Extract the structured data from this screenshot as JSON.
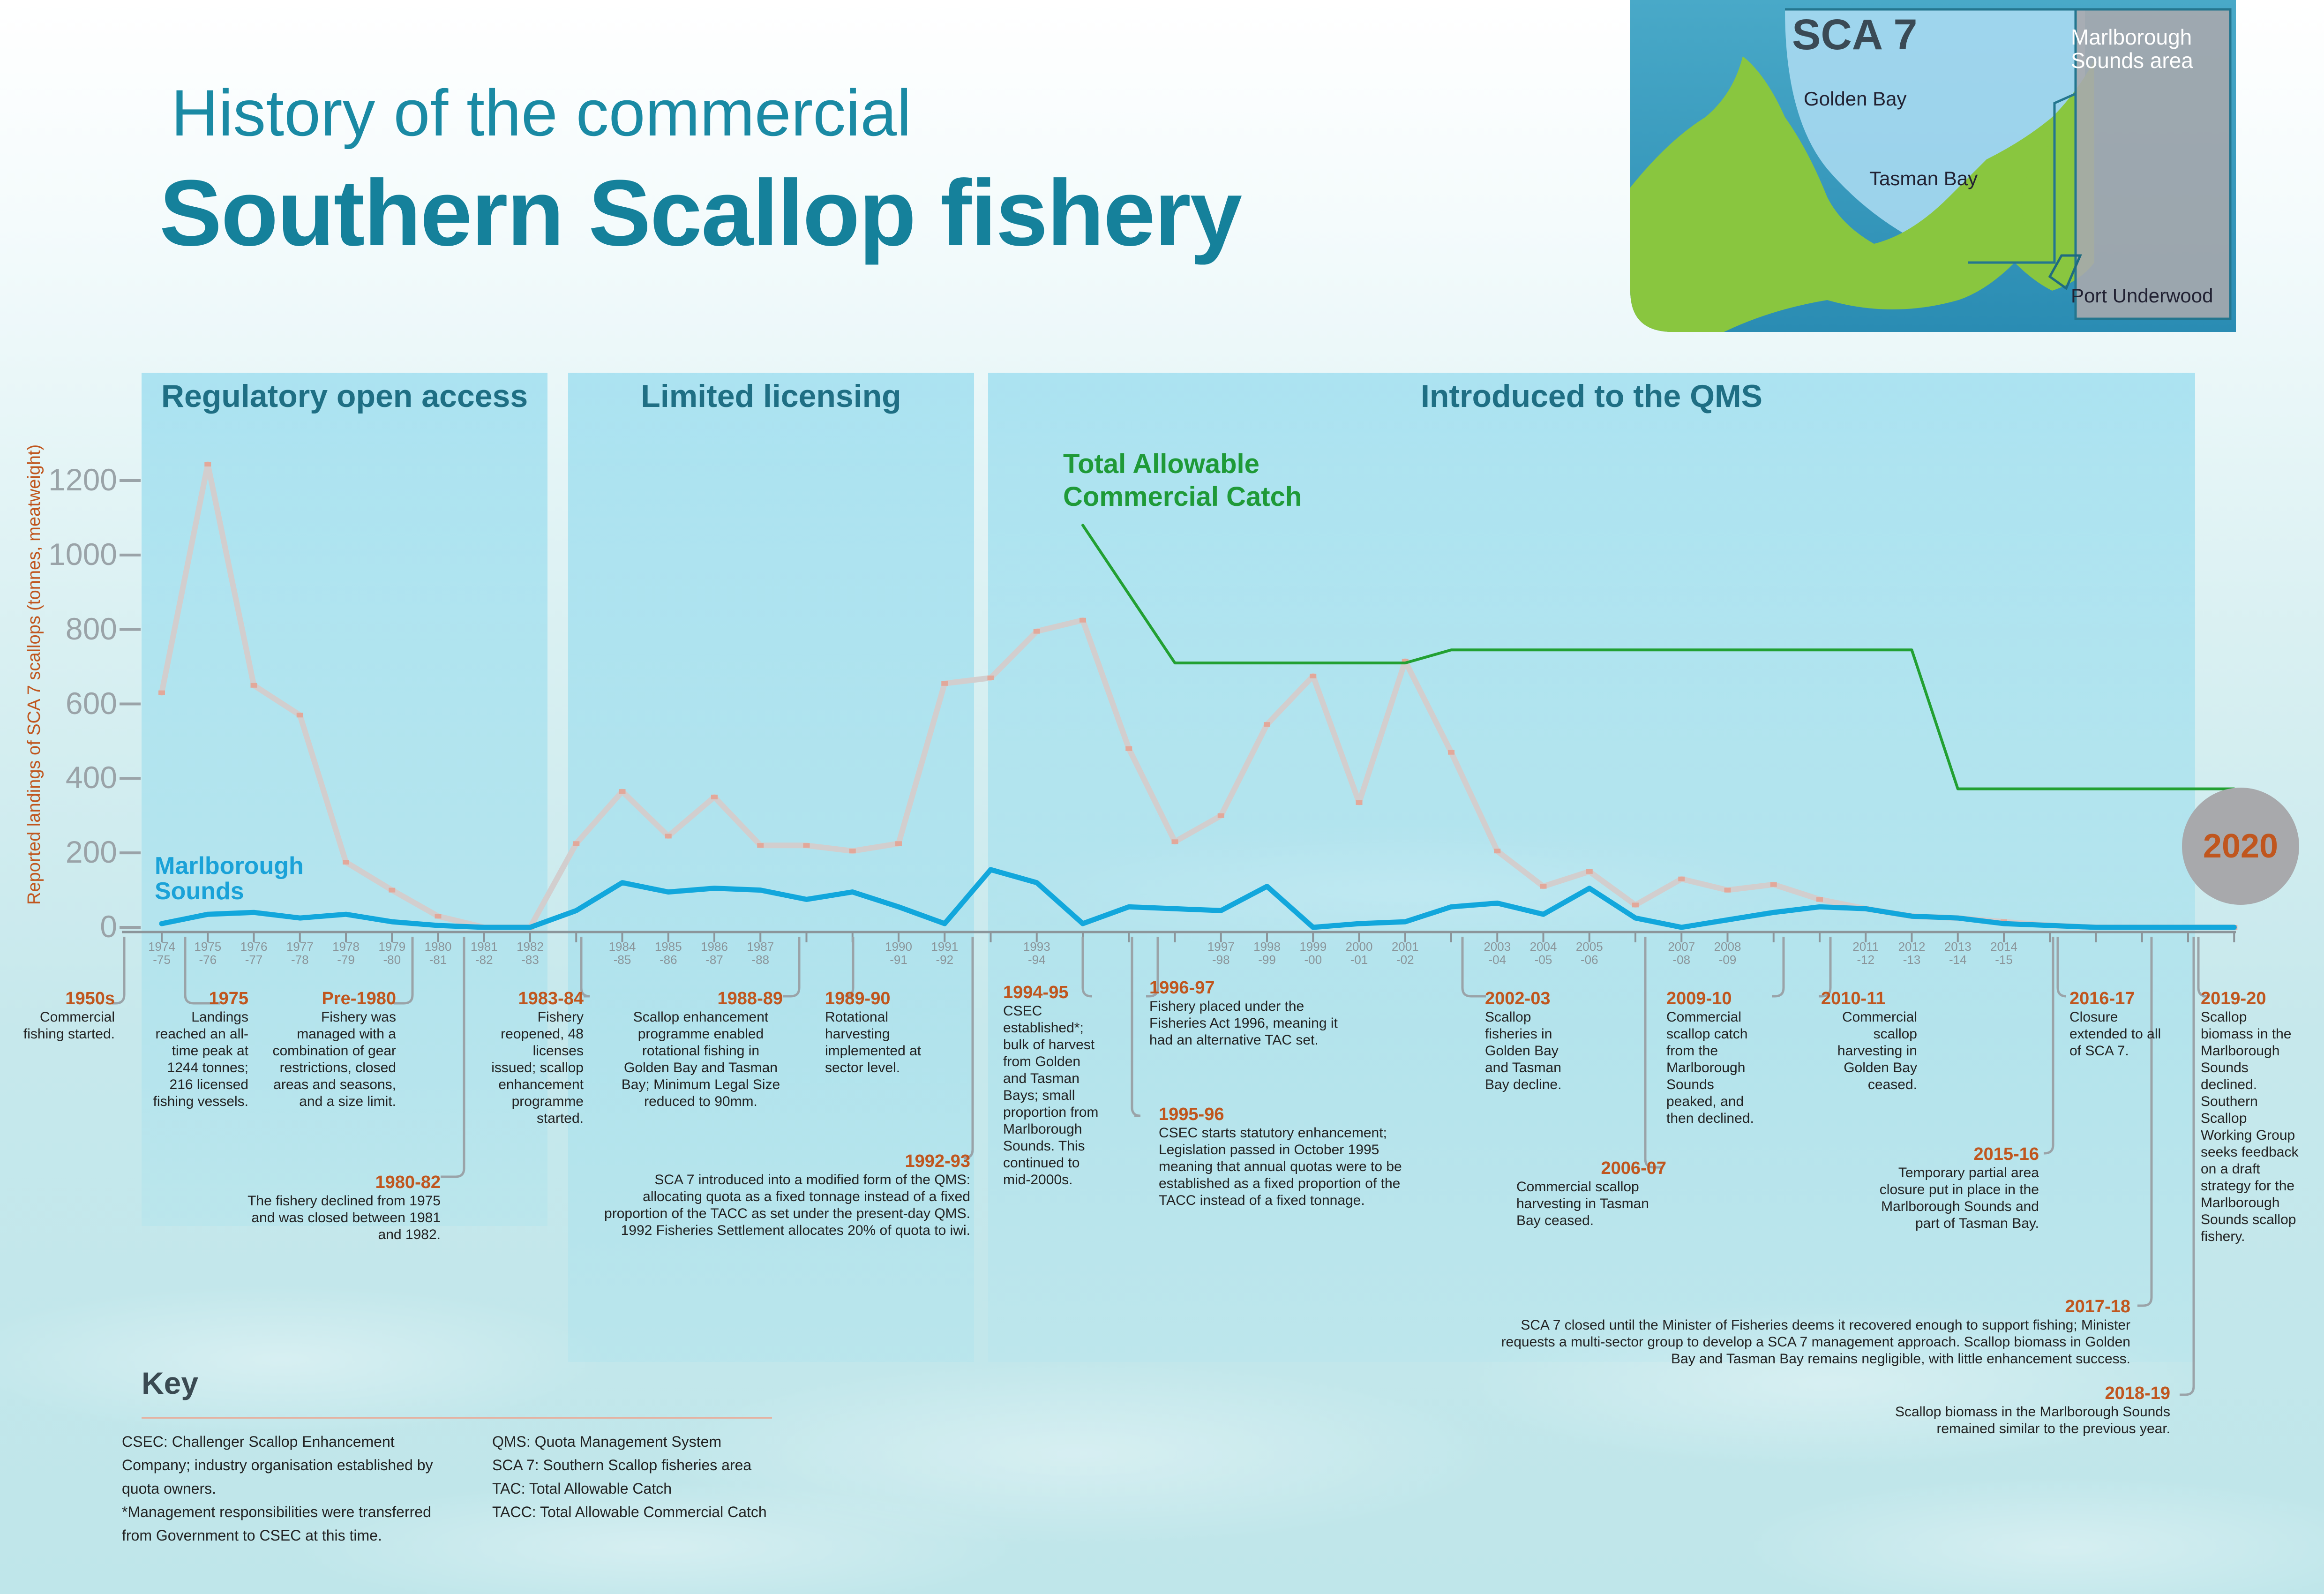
{
  "title": {
    "line1": "History of the commercial",
    "line2": "Southern Scallop fishery"
  },
  "map": {
    "area_label": "SCA 7",
    "marlborough_label_1": "Marlborough",
    "marlborough_label_2": "Sounds area",
    "golden_bay": "Golden Bay",
    "tasman_bay": "Tasman Bay",
    "port_underwood": "Port Underwood"
  },
  "phases": [
    "Regulatory open access",
    "Limited licensing",
    "Introduced to the QMS"
  ],
  "badge": "2020",
  "chart_data": {
    "type": "line",
    "ylabel": "Reported landings of SCA 7 scallops (tonnes, meatweight)",
    "ylim": [
      0,
      1300
    ],
    "yticks": [
      0,
      200,
      400,
      600,
      800,
      1000,
      1200
    ],
    "x_labels": [
      [
        "1974",
        "-75"
      ],
      [
        "1975",
        "-76"
      ],
      [
        "1976",
        "-77"
      ],
      [
        "1977",
        "-78"
      ],
      [
        "1978",
        "-79"
      ],
      [
        "1979",
        "-80"
      ],
      [
        "1980",
        "-81"
      ],
      [
        "1981",
        "-82"
      ],
      [
        "1982",
        "-83"
      ],
      [
        "1984",
        "-85"
      ],
      [
        "1985",
        "-86"
      ],
      [
        "1986",
        "-87"
      ],
      [
        "1987",
        "-88"
      ],
      [
        "1990",
        "-91"
      ],
      [
        "1991",
        "-92"
      ],
      [
        "1993",
        "-94"
      ],
      [
        "1997",
        "-98"
      ],
      [
        "1998",
        "-99"
      ],
      [
        "1999",
        "-00"
      ],
      [
        "2000",
        "-01"
      ],
      [
        "2001",
        "-02"
      ],
      [
        "2003",
        "-04"
      ],
      [
        "2004",
        "-05"
      ],
      [
        "2005",
        "-06"
      ],
      [
        "2007",
        "-08"
      ],
      [
        "2008",
        "-09"
      ],
      [
        "2011",
        "-12"
      ],
      [
        "2012",
        "-13"
      ],
      [
        "2013",
        "-14"
      ],
      [
        "2014",
        "-15"
      ]
    ],
    "series": [
      {
        "name": "",
        "color": "#d2cece",
        "x": [
          1974,
          1975,
          1976,
          1977,
          1978,
          1979,
          1980,
          1981,
          1982,
          1983,
          1984,
          1985,
          1986,
          1987,
          1988,
          1989,
          1990,
          1991,
          1992,
          1993,
          1994,
          1995,
          1996,
          1997,
          1998,
          1999,
          2000,
          2001,
          2002,
          2003,
          2004,
          2005,
          2006,
          2007,
          2008,
          2009,
          2010,
          2011,
          2012,
          2013,
          2014,
          2015,
          2016,
          2017,
          2018,
          2019
        ],
        "values": [
          630,
          1244,
          650,
          570,
          175,
          100,
          30,
          0,
          0,
          225,
          365,
          245,
          350,
          220,
          220,
          205,
          225,
          655,
          670,
          795,
          825,
          480,
          230,
          300,
          545,
          675,
          335,
          715,
          470,
          205,
          110,
          150,
          60,
          130,
          100,
          115,
          75,
          50,
          30,
          25,
          15,
          5,
          0,
          0,
          0,
          0
        ]
      },
      {
        "name": "Marlborough Sounds",
        "color": "#12a7dc",
        "x": [
          1974,
          1975,
          1976,
          1977,
          1978,
          1979,
          1980,
          1981,
          1982,
          1983,
          1984,
          1985,
          1986,
          1987,
          1988,
          1989,
          1990,
          1991,
          1992,
          1993,
          1994,
          1995,
          1996,
          1997,
          1998,
          1999,
          2000,
          2001,
          2002,
          2003,
          2004,
          2005,
          2006,
          2007,
          2008,
          2009,
          2010,
          2011,
          2012,
          2013,
          2014,
          2015,
          2016,
          2017,
          2018,
          2019
        ],
        "values": [
          10,
          35,
          40,
          25,
          35,
          15,
          5,
          0,
          0,
          45,
          120,
          95,
          105,
          100,
          75,
          95,
          55,
          10,
          155,
          120,
          10,
          55,
          50,
          45,
          110,
          0,
          10,
          15,
          55,
          65,
          35,
          105,
          25,
          0,
          20,
          40,
          55,
          50,
          30,
          25,
          10,
          5,
          0,
          0,
          0,
          0
        ]
      },
      {
        "name": "Total Allowable Commercial Catch",
        "color": "#22a032",
        "x": [
          1994,
          1996,
          1997,
          1998,
          1999,
          2000,
          2001,
          2002,
          2003,
          2004,
          2005,
          2006,
          2007,
          2008,
          2009,
          2010,
          2011,
          2012,
          2013,
          2014,
          2015,
          2016,
          2017,
          2018,
          2019
        ],
        "values": [
          1080,
          710,
          710,
          710,
          710,
          710,
          710,
          745,
          745,
          745,
          745,
          745,
          745,
          745,
          745,
          745,
          745,
          745,
          372,
          372,
          372,
          372,
          372,
          372,
          372
        ]
      }
    ],
    "series_labels": {
      "marlborough_1": "Marlborough",
      "marlborough_2": "Sounds",
      "tacc_1": "Total Allowable",
      "tacc_2": "Commercial Catch"
    }
  },
  "events": [
    {
      "year": "1950s",
      "text": "Commercial fishing started."
    },
    {
      "year": "1975",
      "text": "Landings reached an all-time peak at 1244 tonnes; 216 licensed fishing vessels."
    },
    {
      "year": "Pre-1980",
      "text": "Fishery was managed with a combination of gear restrictions, closed areas and seasons, and a size limit."
    },
    {
      "year": "1980-82",
      "text": "The fishery declined from 1975 and was closed between 1981 and 1982."
    },
    {
      "year": "1983-84",
      "text": "Fishery reopened, 48 licenses issued; scallop enhancement programme started."
    },
    {
      "year": "1988-89",
      "text": "Scallop enhancement programme enabled rotational fishing in Golden Bay and Tasman Bay; Minimum Legal Size reduced to 90mm."
    },
    {
      "year": "1989-90",
      "text": "Rotational harvesting implemented at sector level."
    },
    {
      "year": "1992-93",
      "text": "SCA 7 introduced into a modified form of the QMS: allocating quota as a fixed tonnage instead of a fixed proportion of the TACC as set under the present-day QMS. 1992 Fisheries Settlement allocates 20% of quota to iwi."
    },
    {
      "year": "1994-95",
      "text": "CSEC established*; bulk of harvest from Golden and Tasman Bays; small proportion from Marlborough Sounds. This continued to mid-2000s."
    },
    {
      "year": "1996-97",
      "text": "Fishery placed under the Fisheries Act 1996, meaning it had an alternative TAC set."
    },
    {
      "year": "1995-96",
      "text": "CSEC starts statutory enhancement; Legislation passed in October 1995 meaning that annual quotas were to be established as a fixed proportion of the TACC instead of a fixed tonnage."
    },
    {
      "year": "2002-03",
      "text": "Scallop fisheries in Golden Bay and Tasman Bay decline."
    },
    {
      "year": "2006-07",
      "text": "Commercial scallop harvesting in Tasman Bay ceased."
    },
    {
      "year": "2009-10",
      "text": "Commercial scallop catch from the Marlborough Sounds peaked, and then declined."
    },
    {
      "year": "2010-11",
      "text": "Commercial scallop harvesting in Golden Bay ceased."
    },
    {
      "year": "2016-17",
      "text": "Closure extended to all of SCA 7."
    },
    {
      "year": "2015-16",
      "text": "Temporary partial area closure put in place in the Marlborough Sounds and part of Tasman Bay."
    },
    {
      "year": "2017-18",
      "text": "SCA 7 closed until the Minister of Fisheries deems it recovered enough to support fishing; Minister requests a multi-sector group to develop a SCA 7 management approach. Scallop biomass in Golden Bay and Tasman Bay remains negligible, with little enhancement success."
    },
    {
      "year": "2018-19",
      "text": "Scallop biomass in the Marlborough Sounds remained similar to the previous year."
    },
    {
      "year": "2019-20",
      "text": "Scallop biomass in the Marlborough Sounds declined. Southern Scallop Working Group seeks feedback on a draft strategy for the Marlborough Sounds scallop fishery."
    }
  ],
  "key": {
    "title": "Key",
    "left": [
      "CSEC: Challenger Scallop Enhancement",
      "Company; industry organisation established by",
      "quota owners.",
      "*Management responsibilities were transferred",
      "from Government to CSEC at this time."
    ],
    "right": [
      "QMS: Quota Management System",
      "SCA 7: Southern Scallop fisheries area",
      "TAC: Total Allowable Catch",
      "TACC: Total Allowable Commercial Catch"
    ]
  }
}
